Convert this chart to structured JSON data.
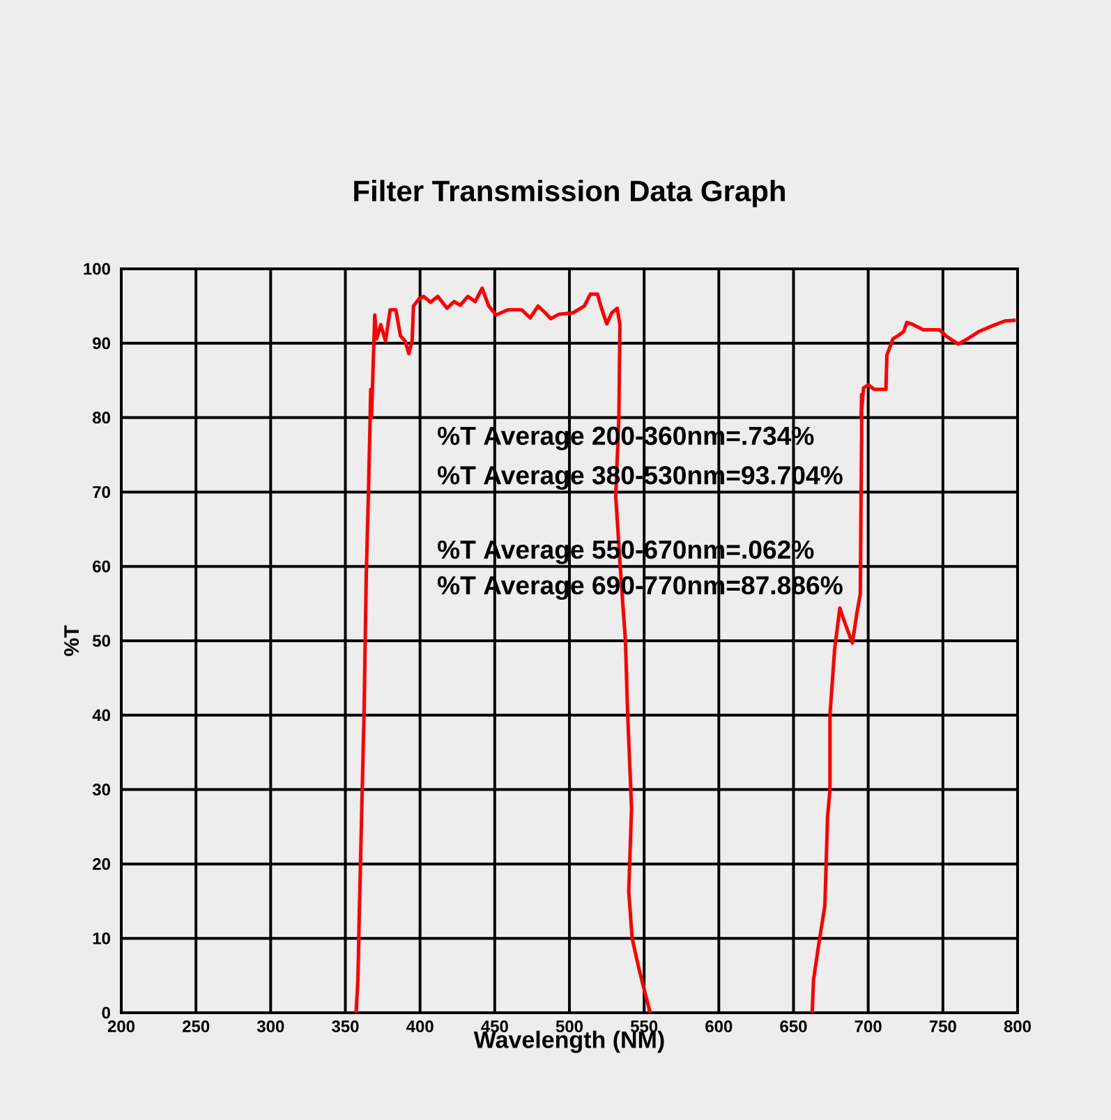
{
  "chart_data": {
    "type": "line",
    "title": "Filter Transmission Data Graph",
    "xlabel": "Wavelength (NM)",
    "ylabel": "%T",
    "xlim": [
      200,
      800
    ],
    "xticks": [
      200,
      250,
      300,
      350,
      400,
      450,
      500,
      550,
      600,
      650,
      700,
      750,
      800
    ],
    "ylim": [
      0,
      100
    ],
    "yticks": [
      0,
      10,
      20,
      30,
      40,
      50,
      60,
      70,
      80,
      90,
      100
    ],
    "grid": true,
    "marker": "none",
    "line_style": "solid",
    "annotations": [
      "%T Average 200-360nm=.734%",
      "%T Average 380-530nm=93.704%",
      "%T Average 550-670nm=.062%",
      "%T Average 690-770nm=87.886%"
    ],
    "series": [
      {
        "color": "#ff0000",
        "x": [
          357.2,
          358.4,
          359.4,
          361,
          362.5,
          364,
          365.6,
          367,
          367.5,
          369.7,
          371,
          373.7,
          376.9,
          380,
          383.8,
          386.9,
          390,
          392.5,
          394.7,
          395.6,
          399.4,
          402.5,
          407,
          411.9,
          418,
          422.8,
          426.9,
          432,
          436.9,
          441.6,
          446,
          450.9,
          458.8,
          468,
          473.8,
          479,
          483.8,
          487.5,
          493,
          502.5,
          510,
          514,
          518.8,
          521,
          525,
          528.4,
          532,
          533.8,
          533.1,
          531,
          534.4,
          537.5,
          539,
          541.6,
          539.7,
          542,
          546.9,
          554,
          600,
          662.5,
          663.4,
          666.6,
          671,
          672.8,
          674.4,
          674.4,
          677.5,
          681,
          685.3,
          689.4,
          692.5,
          694.7,
          695.6,
          695.6,
          695.3,
          696.9,
          700,
          704,
          711.9,
          712.5,
          716.6,
          720.6,
          723.8,
          725.9,
          729,
          736.9,
          747.8,
          752.5,
          760.3,
          766.6,
          774.4,
          783.8,
          791.6,
          798.8
        ],
        "values": [
          0,
          4.4,
          13.8,
          27.5,
          40,
          58.8,
          71,
          83.8,
          80,
          93.8,
          90.6,
          92.5,
          90.3,
          94.5,
          94.5,
          91,
          90.3,
          88.6,
          90.3,
          95,
          96,
          96.3,
          95.5,
          96.3,
          94.7,
          95.6,
          95.1,
          96.3,
          95.6,
          97.4,
          95,
          93.8,
          94.5,
          94.5,
          93.4,
          95,
          94.1,
          93.3,
          93.9,
          94.1,
          95,
          96.6,
          96.6,
          95,
          92.6,
          94.1,
          94.7,
          92.5,
          80,
          69.4,
          58.8,
          50,
          40,
          27.5,
          16.3,
          10,
          5.6,
          0,
          null,
          0,
          4.4,
          8.8,
          14.4,
          26.3,
          30,
          40,
          48.8,
          54.4,
          51.9,
          49.7,
          53.8,
          56.3,
          77.5,
          83.1,
          80.3,
          84,
          84.4,
          83.8,
          83.8,
          88.4,
          90.6,
          91.1,
          91.6,
          92.8,
          92.6,
          91.8,
          91.8,
          90.9,
          89.9,
          90.6,
          91.6,
          92.4,
          93,
          93.1
        ]
      }
    ]
  }
}
